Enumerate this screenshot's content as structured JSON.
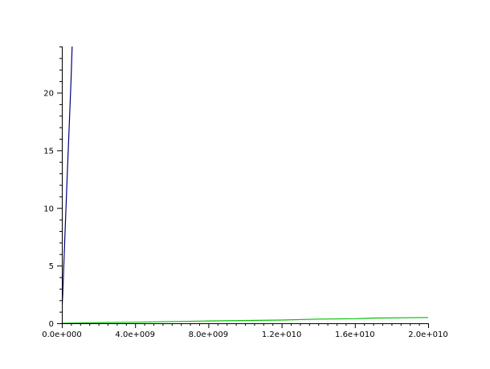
{
  "chart_data": {
    "type": "line",
    "title": "",
    "xlabel": "",
    "ylabel": "",
    "xlim": [
      0,
      20000000000
    ],
    "ylim": [
      0,
      24
    ],
    "grid": false,
    "legend": "none",
    "x_ticks": [
      0,
      4000000000,
      8000000000,
      12000000000,
      16000000000,
      20000000000
    ],
    "x_tick_labels": [
      "0.0e+000",
      "4.0e+009",
      "8.0e+009",
      "1.2e+010",
      "1.6e+010",
      "2.0e+010"
    ],
    "y_ticks": [
      0,
      5,
      10,
      15,
      20
    ],
    "y_tick_labels": [
      "0",
      "5",
      "10",
      "15",
      "20"
    ],
    "series": [
      {
        "color": "#000080",
        "x": [
          0,
          50000000,
          120000000,
          200000000,
          300000000,
          400000000,
          500000000,
          560000000
        ],
        "y": [
          1.0,
          2.5,
          5.5,
          9.0,
          13.0,
          17.0,
          21.0,
          24.0
        ]
      },
      {
        "color": "#00c000",
        "x": [
          0,
          1500000000,
          4000000000,
          8000000000,
          12000000000,
          14000000000,
          16000000000,
          17000000000,
          20000000000
        ],
        "y": [
          0.0,
          0.05,
          0.09,
          0.2,
          0.28,
          0.36,
          0.4,
          0.45,
          0.5
        ]
      }
    ]
  }
}
